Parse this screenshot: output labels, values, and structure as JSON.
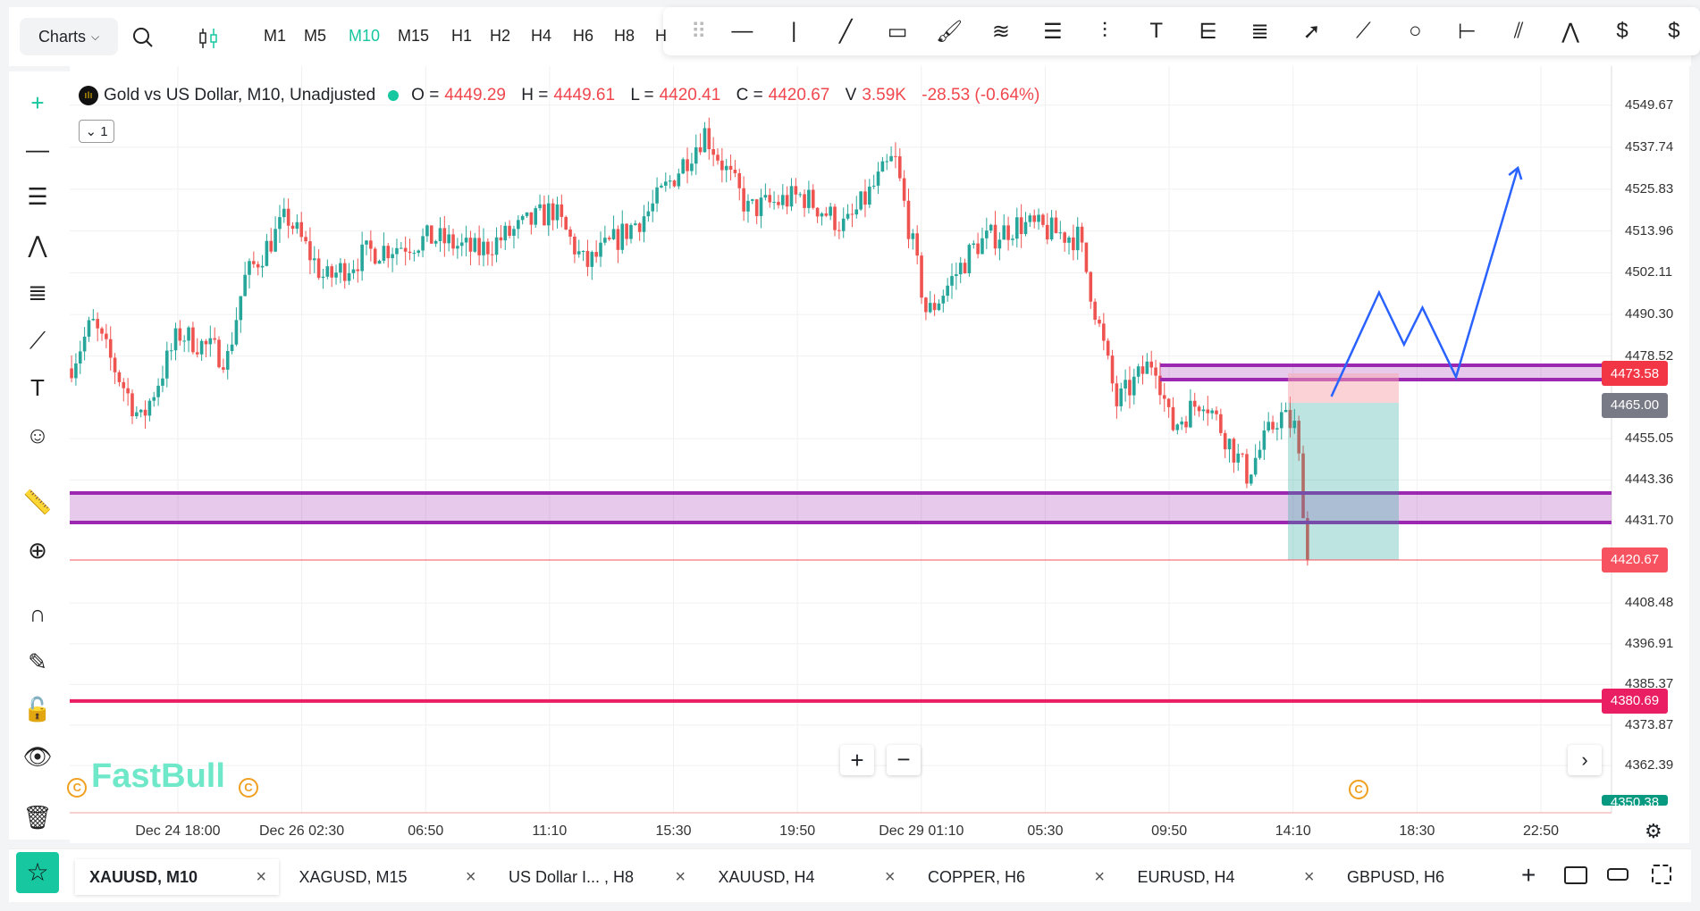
{
  "toolbar": {
    "charts_label": "Charts",
    "timeframes": [
      "M1",
      "M5",
      "M10",
      "M15",
      "H1",
      "H2",
      "H4",
      "H6",
      "H8",
      "H"
    ],
    "active_timeframe": "M10"
  },
  "legend": {
    "title": "Gold vs US Dollar, M10, Unadjusted",
    "o_label": "O =",
    "o": "4449.29",
    "h_label": "H =",
    "h": "4449.61",
    "l_label": "L =",
    "l": "4420.41",
    "c_label": "C =",
    "c": "4420.67",
    "v_label": "V",
    "v": "3.59K",
    "change": "-28.53 (-0.64%)",
    "collapse": "1"
  },
  "price_axis": {
    "ticks": [
      "4549.67",
      "4537.74",
      "4525.83",
      "4513.96",
      "4502.11",
      "4490.30",
      "4478.52",
      "4455.05",
      "4443.36",
      "4431.70",
      "4408.48",
      "4396.91",
      "4385.37",
      "4373.87",
      "4362.39"
    ],
    "labels": [
      {
        "value": "4473.58",
        "color": "#f23645"
      },
      {
        "value": "4465.00",
        "color": "#787b86"
      },
      {
        "value": "4420.67",
        "color": "#f7525f"
      },
      {
        "value": "4380.69",
        "color": "#e91e63"
      },
      {
        "value": "4350.38",
        "color": "#089981"
      }
    ]
  },
  "time_axis": [
    "Dec 24 18:00",
    "Dec 26 02:30",
    "06:50",
    "11:10",
    "15:30",
    "19:50",
    "Dec 29 01:10",
    "05:30",
    "09:50",
    "14:10",
    "18:30",
    "22:50"
  ],
  "watermark": "FastBull",
  "colors": {
    "up": "#26a69a",
    "down": "#ef5350",
    "accent": "#16c7a0",
    "zone": "#9c27b0",
    "forecast": "#2962ff"
  },
  "tabs": [
    {
      "label": "XAUUSD, M10",
      "active": true
    },
    {
      "label": "XAGUSD, M15"
    },
    {
      "label": "US Dollar I... , H8"
    },
    {
      "label": "XAUUSD, H4"
    },
    {
      "label": "COPPER, H6"
    },
    {
      "label": "EURUSD, H4"
    },
    {
      "label": "GBPUSD, H6"
    }
  ]
}
